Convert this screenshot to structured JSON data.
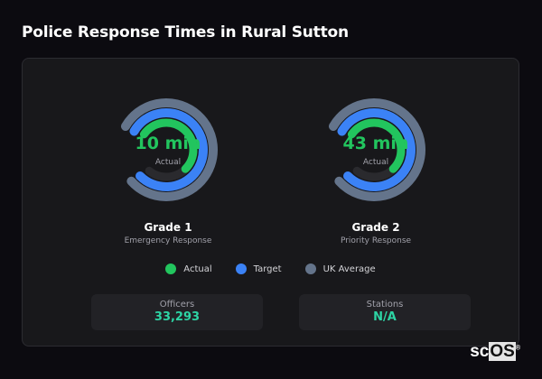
{
  "title": "Police Response Times in Rural Sutton",
  "colors": {
    "actual": "#22c55e",
    "target": "#3b82f6",
    "uk_average": "#64748b",
    "track": "#2a2a2e",
    "stat_value": "#2dd4a4"
  },
  "gauges": [
    {
      "value_text": "10 min",
      "center_label": "Actual",
      "name": "Grade 1",
      "description": "Emergency Response",
      "fill": {
        "uk_average": 0.96,
        "target": 0.95,
        "actual": 0.65
      }
    },
    {
      "value_text": "43 min",
      "center_label": "Actual",
      "name": "Grade 2",
      "description": "Priority Response",
      "fill": {
        "uk_average": 0.96,
        "target": 0.95,
        "actual": 0.65
      }
    }
  ],
  "legend": [
    {
      "label": "Actual",
      "color": "#22c55e"
    },
    {
      "label": "Target",
      "color": "#3b82f6"
    },
    {
      "label": "UK Average",
      "color": "#64748b"
    }
  ],
  "stats": [
    {
      "label": "Officers",
      "value": "33,293"
    },
    {
      "label": "Stations",
      "value": "N/A"
    }
  ],
  "logo": {
    "text_a": "sc",
    "text_b": "OS",
    "mark": "®"
  }
}
